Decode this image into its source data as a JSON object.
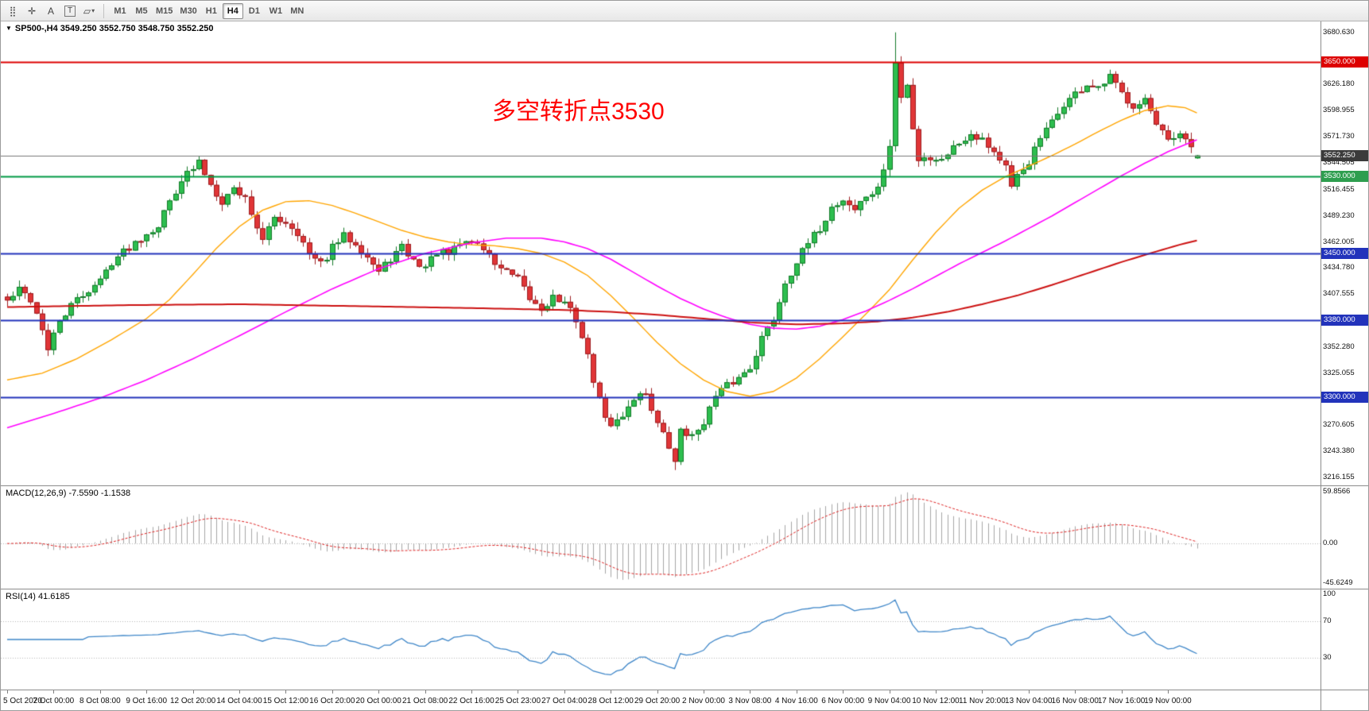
{
  "toolbar": {
    "tools": [
      {
        "name": "toolbar-grip",
        "glyph": "⣿"
      },
      {
        "name": "crosshair-tool",
        "glyph": "✛"
      },
      {
        "name": "text-label-tool",
        "glyph": "A"
      },
      {
        "name": "text-tool",
        "glyph": "T",
        "boxed": true
      },
      {
        "name": "shapes-tool",
        "glyph": "▱",
        "caret": true
      }
    ],
    "timeframes": [
      "M1",
      "M5",
      "M15",
      "M30",
      "H1",
      "H4",
      "D1",
      "W1",
      "MN"
    ],
    "active_timeframe": "H4"
  },
  "symbol_header": {
    "collapse_icon": "▼",
    "symbol": "SP500-,H4",
    "ohlc": "3549.250 3552.750 3548.750 3552.250"
  },
  "annotation": {
    "text": "多空转折点3530",
    "color": "#ff0000"
  },
  "price_axis": {
    "ticks": [
      {
        "v": 3680.63,
        "t": "3680.630"
      },
      {
        "v": 3626.18,
        "t": "3626.180"
      },
      {
        "v": 3598.955,
        "t": "3598.955"
      },
      {
        "v": 3571.73,
        "t": "3571.730"
      },
      {
        "v": 3544.505,
        "t": "3544.505"
      },
      {
        "v": 3516.455,
        "t": "3516.455"
      },
      {
        "v": 3489.23,
        "t": "3489.230"
      },
      {
        "v": 3462.005,
        "t": "3462.005"
      },
      {
        "v": 3434.78,
        "t": "3434.780"
      },
      {
        "v": 3407.555,
        "t": "3407.555"
      },
      {
        "v": 3352.28,
        "t": "3352.280"
      },
      {
        "v": 3325.055,
        "t": "3325.055"
      },
      {
        "v": 3270.605,
        "t": "3270.605"
      },
      {
        "v": 3243.38,
        "t": "3243.380"
      },
      {
        "v": 3216.155,
        "t": "3216.155"
      }
    ],
    "badges": [
      {
        "v": 3650.0,
        "t": "3650.000",
        "color": "#dd0000"
      },
      {
        "v": 3552.25,
        "t": "3552.250",
        "color": "#3b3b3b"
      },
      {
        "v": 3530.0,
        "t": "3530.000",
        "color": "#2e9e4f"
      },
      {
        "v": 3450.0,
        "t": "3450.000",
        "color": "#2233bb"
      },
      {
        "v": 3380.0,
        "t": "3380.000",
        "color": "#2233bb"
      },
      {
        "v": 3300.0,
        "t": "3300.000",
        "color": "#2233bb"
      }
    ]
  },
  "time_axis": {
    "labels": [
      "5 Oct 2020",
      "7 Oct 00:00",
      "8 Oct 08:00",
      "9 Oct 16:00",
      "12 Oct 20:00",
      "14 Oct 04:00",
      "15 Oct 12:00",
      "16 Oct 20:00",
      "20 Oct 00:00",
      "21 Oct 08:00",
      "22 Oct 16:00",
      "25 Oct 23:00",
      "27 Oct 04:00",
      "28 Oct 12:00",
      "29 Oct 20:00",
      "2 Nov 00:00",
      "3 Nov 08:00",
      "4 Nov 16:00",
      "6 Nov 00:00",
      "9 Nov 04:00",
      "10 Nov 12:00",
      "11 Nov 20:00",
      "13 Nov 04:00",
      "16 Nov 08:00",
      "17 Nov 16:00",
      "19 Nov 00:00"
    ]
  },
  "panels": {
    "macd": {
      "label": "MACD(12,26,9)",
      "values": "-7.5590 -1.1538",
      "axis_labels": [
        {
          "v": 59.8566,
          "t": "59.8566"
        },
        {
          "v": 0,
          "t": "0.00"
        },
        {
          "v": -45.6249,
          "t": "-45.6249"
        }
      ],
      "range": [
        -52,
        66
      ]
    },
    "rsi": {
      "label": "RSI(14)",
      "value": "41.6185",
      "axis_labels": [
        {
          "v": 100,
          "t": "100"
        },
        {
          "v": 70,
          "t": "70"
        },
        {
          "v": 30,
          "t": "30"
        }
      ],
      "levels": [
        70,
        30
      ]
    }
  },
  "chart_data": {
    "type": "candlestick",
    "symbol": "SP500-",
    "timeframe": "H4",
    "bars": 206,
    "seed": 42,
    "noise": 4.5,
    "wick": 7,
    "price_range": [
      3208,
      3692
    ],
    "current_bar": [
      3549.25,
      3552.75,
      3548.75,
      3552.25
    ],
    "high_overrides": [
      [
        153,
        3680.63
      ]
    ],
    "low_overrides": [
      [
        115,
        3224
      ]
    ],
    "price_anchors": [
      [
        0,
        3400
      ],
      [
        2,
        3412
      ],
      [
        4,
        3402
      ],
      [
        6,
        3372
      ],
      [
        7,
        3348
      ],
      [
        9,
        3380
      ],
      [
        12,
        3402
      ],
      [
        14,
        3412
      ],
      [
        16,
        3422
      ],
      [
        18,
        3442
      ],
      [
        20,
        3452
      ],
      [
        22,
        3462
      ],
      [
        24,
        3472
      ],
      [
        26,
        3480
      ],
      [
        28,
        3505
      ],
      [
        30,
        3528
      ],
      [
        32,
        3538
      ],
      [
        33,
        3545
      ],
      [
        35,
        3522
      ],
      [
        37,
        3505
      ],
      [
        39,
        3518
      ],
      [
        41,
        3508
      ],
      [
        43,
        3478
      ],
      [
        44,
        3462
      ],
      [
        46,
        3488
      ],
      [
        48,
        3483
      ],
      [
        50,
        3472
      ],
      [
        52,
        3448
      ],
      [
        54,
        3438
      ],
      [
        56,
        3456
      ],
      [
        58,
        3468
      ],
      [
        60,
        3462
      ],
      [
        62,
        3447
      ],
      [
        64,
        3430
      ],
      [
        66,
        3445
      ],
      [
        68,
        3456
      ],
      [
        70,
        3442
      ],
      [
        72,
        3436
      ],
      [
        74,
        3452
      ],
      [
        76,
        3448
      ],
      [
        78,
        3460
      ],
      [
        80,
        3464
      ],
      [
        82,
        3455
      ],
      [
        84,
        3440
      ],
      [
        86,
        3430
      ],
      [
        88,
        3422
      ],
      [
        90,
        3402
      ],
      [
        92,
        3392
      ],
      [
        94,
        3405
      ],
      [
        96,
        3397
      ],
      [
        98,
        3382
      ],
      [
        100,
        3342
      ],
      [
        102,
        3295
      ],
      [
        104,
        3268
      ],
      [
        106,
        3282
      ],
      [
        108,
        3300
      ],
      [
        110,
        3305
      ],
      [
        112,
        3272
      ],
      [
        114,
        3248
      ],
      [
        115,
        3230
      ],
      [
        116,
        3268
      ],
      [
        118,
        3258
      ],
      [
        120,
        3276
      ],
      [
        122,
        3300
      ],
      [
        124,
        3312
      ],
      [
        126,
        3320
      ],
      [
        128,
        3332
      ],
      [
        130,
        3362
      ],
      [
        132,
        3382
      ],
      [
        134,
        3420
      ],
      [
        136,
        3442
      ],
      [
        138,
        3460
      ],
      [
        140,
        3476
      ],
      [
        142,
        3498
      ],
      [
        144,
        3506
      ],
      [
        146,
        3496
      ],
      [
        148,
        3510
      ],
      [
        150,
        3516
      ],
      [
        152,
        3562
      ],
      [
        153,
        3648
      ],
      [
        154,
        3612
      ],
      [
        155,
        3625
      ],
      [
        156,
        3582
      ],
      [
        157,
        3548
      ],
      [
        158,
        3552
      ],
      [
        160,
        3546
      ],
      [
        162,
        3556
      ],
      [
        164,
        3566
      ],
      [
        166,
        3576
      ],
      [
        168,
        3570
      ],
      [
        170,
        3556
      ],
      [
        172,
        3540
      ],
      [
        173,
        3516
      ],
      [
        174,
        3530
      ],
      [
        176,
        3546
      ],
      [
        178,
        3570
      ],
      [
        180,
        3586
      ],
      [
        182,
        3606
      ],
      [
        184,
        3616
      ],
      [
        186,
        3626
      ],
      [
        188,
        3620
      ],
      [
        190,
        3634
      ],
      [
        192,
        3616
      ],
      [
        194,
        3605
      ],
      [
        196,
        3612
      ],
      [
        198,
        3582
      ],
      [
        200,
        3566
      ],
      [
        202,
        3572
      ],
      [
        204,
        3560
      ],
      [
        205,
        3552.25
      ]
    ],
    "levels": [
      {
        "price": 3650.0,
        "color": "#dd0000",
        "width": 2,
        "label": "3650.000"
      },
      {
        "price": 3530.0,
        "color": "#009a44",
        "width": 2,
        "label": "3530.000"
      },
      {
        "price": 3450.0,
        "color": "#2233bb",
        "width": 2,
        "label": "3450.000"
      },
      {
        "price": 3380.0,
        "color": "#2233bb",
        "width": 2,
        "label": "3380.000"
      },
      {
        "price": 3300.0,
        "color": "#2233bb",
        "width": 2,
        "label": "3300.000"
      }
    ],
    "current_price": {
      "value": 3552.25,
      "label": "3552.250",
      "color": "#777777"
    },
    "moving_averages": [
      {
        "name": "ma-fast-orange",
        "color": "#ffa500",
        "width": 1.4,
        "anchors": [
          [
            0,
            3318
          ],
          [
            6,
            3325
          ],
          [
            12,
            3340
          ],
          [
            18,
            3360
          ],
          [
            24,
            3382
          ],
          [
            28,
            3402
          ],
          [
            32,
            3428
          ],
          [
            36,
            3455
          ],
          [
            40,
            3478
          ],
          [
            44,
            3495
          ],
          [
            48,
            3504
          ],
          [
            52,
            3505
          ],
          [
            56,
            3500
          ],
          [
            60,
            3492
          ],
          [
            64,
            3483
          ],
          [
            68,
            3474
          ],
          [
            72,
            3467
          ],
          [
            76,
            3462
          ],
          [
            80,
            3459
          ],
          [
            84,
            3458
          ],
          [
            88,
            3455
          ],
          [
            92,
            3450
          ],
          [
            96,
            3441
          ],
          [
            100,
            3427
          ],
          [
            104,
            3406
          ],
          [
            108,
            3382
          ],
          [
            112,
            3357
          ],
          [
            116,
            3335
          ],
          [
            120,
            3318
          ],
          [
            124,
            3306
          ],
          [
            128,
            3301
          ],
          [
            132,
            3306
          ],
          [
            136,
            3320
          ],
          [
            140,
            3340
          ],
          [
            144,
            3363
          ],
          [
            148,
            3387
          ],
          [
            152,
            3412
          ],
          [
            156,
            3443
          ],
          [
            160,
            3472
          ],
          [
            164,
            3497
          ],
          [
            168,
            3516
          ],
          [
            172,
            3530
          ],
          [
            176,
            3541
          ],
          [
            180,
            3552
          ],
          [
            184,
            3564
          ],
          [
            188,
            3577
          ],
          [
            192,
            3589
          ],
          [
            196,
            3599
          ],
          [
            200,
            3604
          ],
          [
            203,
            3602
          ],
          [
            206,
            3594
          ]
        ]
      },
      {
        "name": "ma-mid-magenta",
        "color": "#ff00ff",
        "width": 1.6,
        "anchors": [
          [
            0,
            3268
          ],
          [
            8,
            3283
          ],
          [
            16,
            3299
          ],
          [
            24,
            3318
          ],
          [
            32,
            3340
          ],
          [
            40,
            3364
          ],
          [
            48,
            3389
          ],
          [
            56,
            3413
          ],
          [
            64,
            3434
          ],
          [
            72,
            3450
          ],
          [
            80,
            3461
          ],
          [
            86,
            3466
          ],
          [
            92,
            3466
          ],
          [
            96,
            3462
          ],
          [
            100,
            3455
          ],
          [
            104,
            3444
          ],
          [
            108,
            3430
          ],
          [
            112,
            3416
          ],
          [
            116,
            3403
          ],
          [
            120,
            3392
          ],
          [
            124,
            3383
          ],
          [
            128,
            3376
          ],
          [
            132,
            3372
          ],
          [
            136,
            3371
          ],
          [
            140,
            3374
          ],
          [
            144,
            3381
          ],
          [
            148,
            3390
          ],
          [
            152,
            3401
          ],
          [
            156,
            3413
          ],
          [
            160,
            3426
          ],
          [
            164,
            3439
          ],
          [
            168,
            3451
          ],
          [
            172,
            3463
          ],
          [
            176,
            3476
          ],
          [
            180,
            3489
          ],
          [
            184,
            3503
          ],
          [
            188,
            3517
          ],
          [
            192,
            3531
          ],
          [
            196,
            3544
          ],
          [
            200,
            3556
          ],
          [
            206,
            3571
          ]
        ]
      },
      {
        "name": "ma-slow-red",
        "color": "#cc1111",
        "width": 2,
        "anchors": [
          [
            0,
            3394
          ],
          [
            20,
            3396
          ],
          [
            40,
            3397
          ],
          [
            60,
            3395
          ],
          [
            80,
            3393
          ],
          [
            96,
            3391
          ],
          [
            104,
            3389
          ],
          [
            112,
            3386
          ],
          [
            120,
            3382
          ],
          [
            128,
            3378
          ],
          [
            136,
            3376
          ],
          [
            144,
            3377
          ],
          [
            150,
            3379
          ],
          [
            156,
            3383
          ],
          [
            162,
            3389
          ],
          [
            168,
            3397
          ],
          [
            174,
            3406
          ],
          [
            180,
            3417
          ],
          [
            186,
            3429
          ],
          [
            192,
            3441
          ],
          [
            198,
            3452
          ],
          [
            202,
            3459
          ],
          [
            206,
            3465
          ]
        ]
      }
    ],
    "colors": {
      "bull": "#2dbe4f",
      "bull_border": "#157a2a",
      "bear": "#e03537",
      "bear_border": "#9c1f22",
      "macd_hist": "#a6a6a6",
      "macd_signal": "#dd2222",
      "rsi_line": "#3e86c8",
      "level_dotted": "#b6b6b6"
    }
  }
}
